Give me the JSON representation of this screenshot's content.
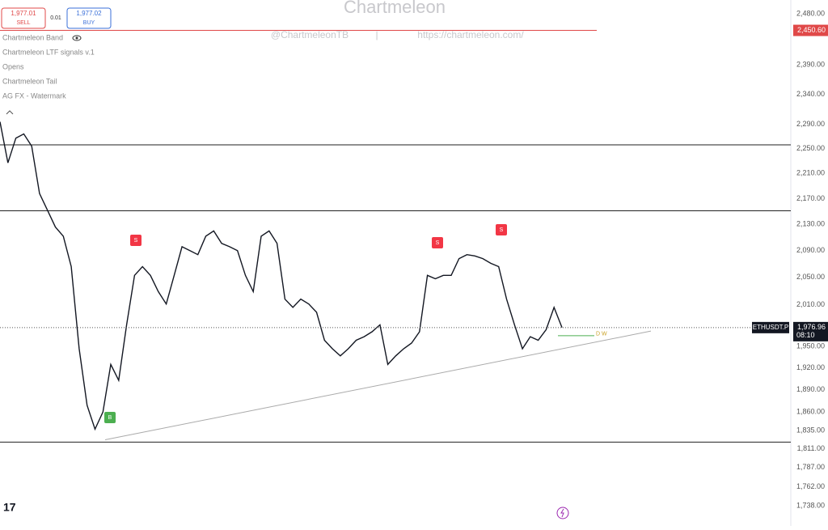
{
  "chart_data": {
    "type": "line",
    "title": "Chartmeleon",
    "subtitle": "@ChartmeleonTB",
    "separator": "|",
    "url": "https://chartmeleon.com/",
    "color": "#131722",
    "log_scale": true,
    "ylim": [
      1723,
      2505
    ],
    "yticks": [
      {
        "value": 2480,
        "label": "2,480.00"
      },
      {
        "value": 2390,
        "label": "2,390.00"
      },
      {
        "value": 2340,
        "label": "2,340.00"
      },
      {
        "value": 2290,
        "label": "2,290.00"
      },
      {
        "value": 2250,
        "label": "2,250.00"
      },
      {
        "value": 2210,
        "label": "2,210.00"
      },
      {
        "value": 2170,
        "label": "2,170.00"
      },
      {
        "value": 2130,
        "label": "2,130.00"
      },
      {
        "value": 2090,
        "label": "2,090.00"
      },
      {
        "value": 2050,
        "label": "2,050.00"
      },
      {
        "value": 2010,
        "label": "2,010.00"
      },
      {
        "value": 1950,
        "label": "1,950.00"
      },
      {
        "value": 1920,
        "label": "1,920.00"
      },
      {
        "value": 1890,
        "label": "1,890.00"
      },
      {
        "value": 1860,
        "label": "1,860.00"
      },
      {
        "value": 1835,
        "label": "1,835.00"
      },
      {
        "value": 1811,
        "label": "1,811.00"
      },
      {
        "value": 1787,
        "label": "1,787.00"
      },
      {
        "value": 1762,
        "label": "1,762.00"
      },
      {
        "value": 1738,
        "label": "1,738.00"
      }
    ],
    "values": [
      2294,
      2227,
      2267,
      2274,
      2254,
      2178,
      2152,
      2126,
      2112,
      2066,
      1947,
      1869,
      1837,
      1860,
      1925,
      1903,
      1981,
      2053,
      2066,
      2053,
      2029,
      2011,
      2053,
      2096,
      2090,
      2084,
      2112,
      2120,
      2101,
      2096,
      2090,
      2053,
      2029,
      2112,
      2120,
      2101,
      2018,
      2006,
      2018,
      2011,
      1999,
      1959,
      1947,
      1937,
      1947,
      1959,
      1964,
      1971,
      1981,
      1925,
      1937,
      1947,
      1955,
      1971,
      2053,
      2048,
      2053,
      2053,
      2078,
      2084,
      2082,
      2078,
      2071,
      2066,
      2018,
      1981,
      1947,
      1964,
      1959,
      1974,
      2006,
      1977
    ],
    "levels": [
      2256,
      2151,
      1820
    ],
    "trendline": [
      1823,
      1972
    ],
    "alert": {
      "value": 2450.6,
      "label": "2,450.60"
    },
    "last": {
      "value": 1976.96,
      "label": "1,976.96"
    },
    "symbol": "ETHUSDT.P",
    "countdown": "08:10",
    "level_tags": "D W",
    "signals": [
      "S",
      "S",
      "S",
      "B"
    ]
  },
  "quote": {
    "sell_price": "1,977.01",
    "sell": "SELL",
    "spread": "0.01",
    "buy_price": "1,977.02",
    "buy": "BUY"
  },
  "indicators": [
    "Chartmeleon Band",
    "Chartmeleon LTF signals v.1",
    "Opens",
    "Chartmeleon Tail",
    "AG FX - Watermark"
  ]
}
